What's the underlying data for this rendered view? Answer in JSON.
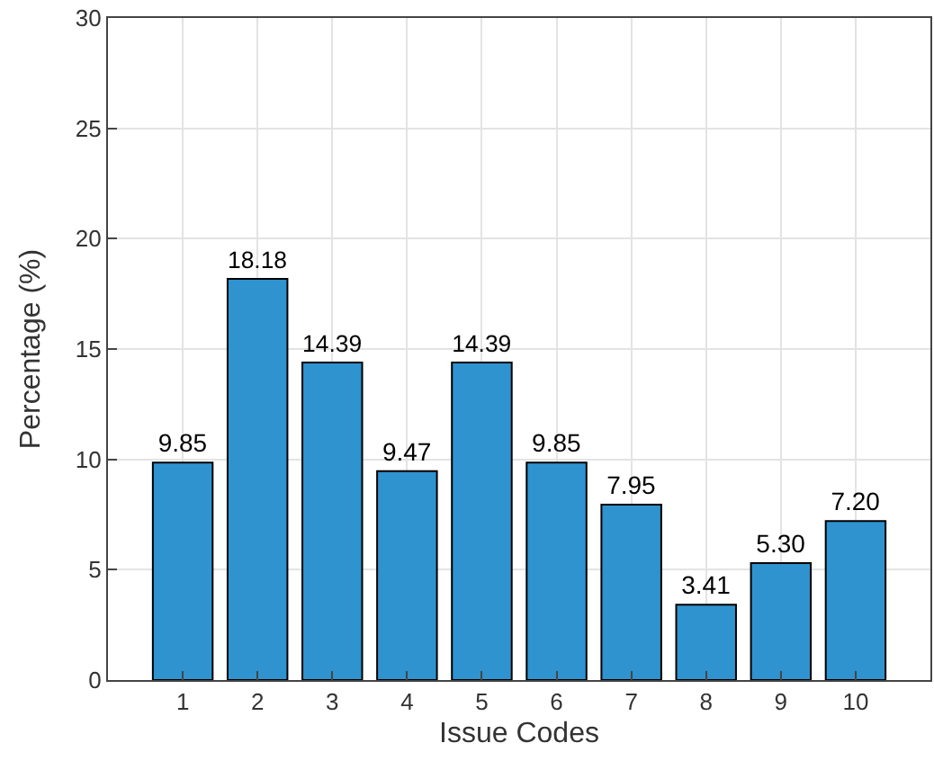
{
  "chart_data": {
    "type": "bar",
    "x": [
      1,
      2,
      3,
      4,
      5,
      6,
      7,
      8,
      9,
      10
    ],
    "values": [
      9.85,
      18.18,
      14.39,
      9.47,
      14.39,
      9.85,
      7.95,
      3.41,
      5.3,
      7.2
    ],
    "value_labels": [
      "9.85",
      "18.18",
      "14.39",
      "9.47",
      "14.39",
      "9.85",
      "7.95",
      "3.41",
      "5.30",
      "7.20"
    ],
    "color": "#2f93cf",
    "xlabel": "Issue Codes",
    "ylabel": "Percentage (%)",
    "xlim": [
      0,
      11
    ],
    "xticks": [
      1,
      2,
      3,
      4,
      5,
      6,
      7,
      8,
      9,
      10
    ],
    "ylim": [
      0,
      30
    ],
    "yticks": [
      0,
      5,
      10,
      15,
      20,
      25,
      30
    ],
    "grid": true
  }
}
